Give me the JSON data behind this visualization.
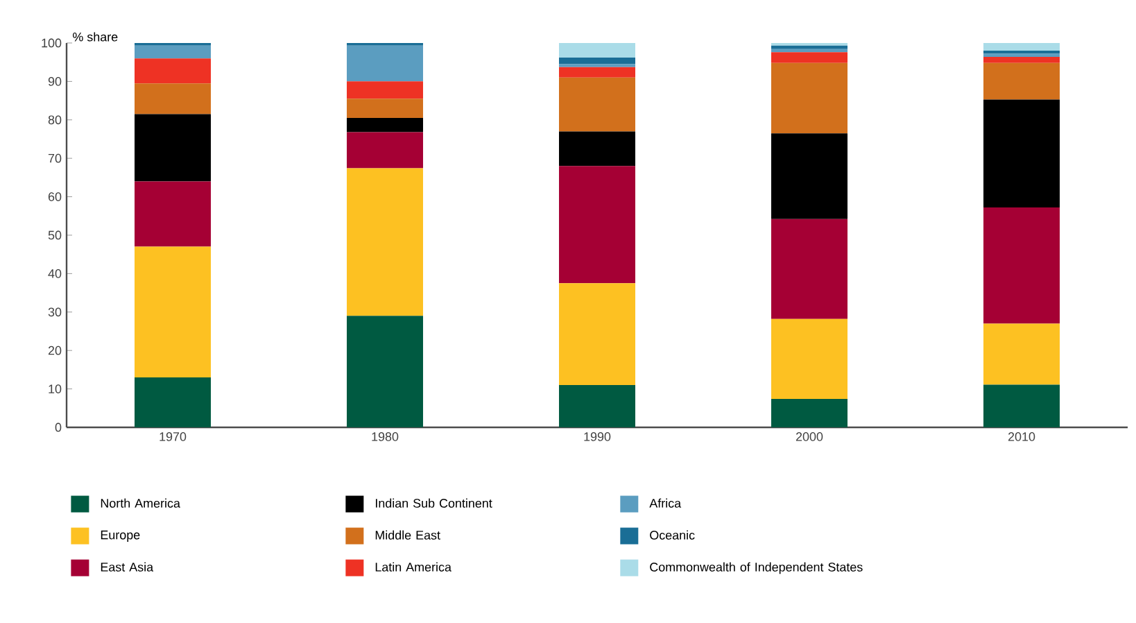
{
  "chart_data": {
    "type": "bar",
    "stacked": true,
    "ylabel": "% share",
    "categories": [
      "1970",
      "1980",
      "1990",
      "2000",
      "2010"
    ],
    "ylim": [
      0,
      100
    ],
    "yticks": [
      0,
      10,
      20,
      30,
      40,
      50,
      60,
      70,
      80,
      90,
      100
    ],
    "legend": "bottom",
    "series": [
      {
        "name": "North America",
        "color": "#005a41",
        "values": [
          13,
          29,
          11,
          7.4,
          11.1
        ]
      },
      {
        "name": "Europe",
        "color": "#fdc122",
        "values": [
          34,
          38.4,
          26.5,
          20.8,
          15.9
        ]
      },
      {
        "name": "East Asia",
        "color": "#a50034",
        "values": [
          17,
          9.4,
          30.5,
          26,
          30.2
        ]
      },
      {
        "name": "Indian Sub Continent",
        "color": "#000000",
        "values": [
          17.5,
          3.7,
          9,
          22.3,
          28.1
        ]
      },
      {
        "name": "Middle East",
        "color": "#d2701c",
        "values": [
          8,
          5,
          14,
          18.3,
          9.5
        ]
      },
      {
        "name": "Latin America",
        "color": "#ee3224",
        "values": [
          6.5,
          4.5,
          2.7,
          2.8,
          1.6
        ]
      },
      {
        "name": "Africa",
        "color": "#5b9dc0",
        "values": [
          3.3,
          9.3,
          0.8,
          0.8,
          0.8
        ]
      },
      {
        "name": "Oceanic",
        "color": "#1a6e96",
        "values": [
          0.7,
          0.7,
          1.7,
          0.9,
          0.8
        ]
      },
      {
        "name": "Commonwealth of Independent States",
        "color": "#aadce8",
        "values": [
          0,
          0,
          3.8,
          0.7,
          2
        ]
      }
    ]
  }
}
